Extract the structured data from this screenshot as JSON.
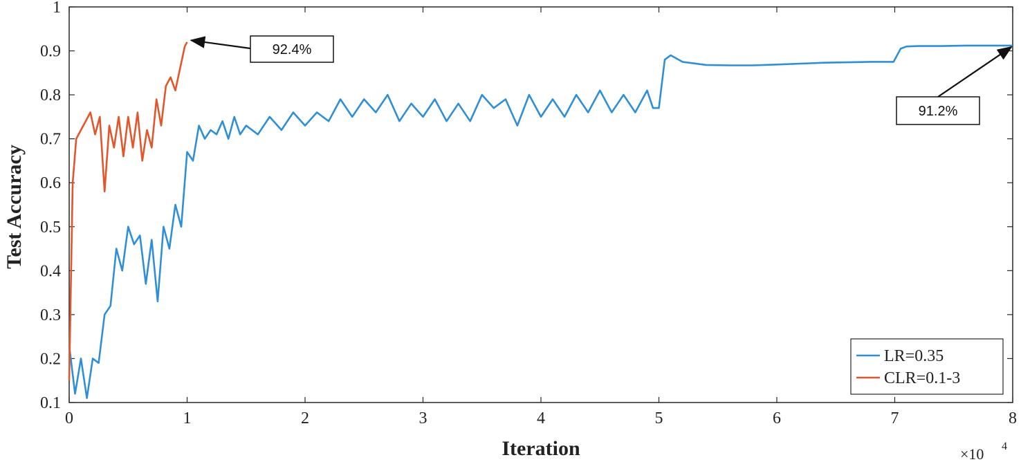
{
  "chart_data": {
    "type": "line",
    "title": "",
    "xlabel": "Iteration",
    "ylabel": "Test Accuracy",
    "x_multiplier": "×10",
    "x_multiplier_exp": "4",
    "xlim": [
      0,
      8
    ],
    "ylim": [
      0.1,
      1
    ],
    "xticks": [
      "0",
      "1",
      "2",
      "3",
      "4",
      "5",
      "6",
      "7",
      "8"
    ],
    "yticks": [
      "0.1",
      "0.2",
      "0.3",
      "0.4",
      "0.5",
      "0.6",
      "0.7",
      "0.8",
      "0.9",
      "1"
    ],
    "grid": false,
    "legend_position": "bottom-right",
    "series": [
      {
        "name": "LR=0.35",
        "color": "#2f8fd6",
        "x": [
          0.0,
          0.05,
          0.1,
          0.15,
          0.2,
          0.25,
          0.3,
          0.35,
          0.4,
          0.45,
          0.5,
          0.55,
          0.6,
          0.65,
          0.7,
          0.75,
          0.8,
          0.85,
          0.9,
          0.95,
          1.0,
          1.05,
          1.1,
          1.15,
          1.2,
          1.25,
          1.3,
          1.35,
          1.4,
          1.45,
          1.5,
          1.6,
          1.7,
          1.8,
          1.9,
          2.0,
          2.1,
          2.2,
          2.3,
          2.4,
          2.5,
          2.6,
          2.7,
          2.8,
          2.9,
          3.0,
          3.1,
          3.2,
          3.3,
          3.4,
          3.5,
          3.6,
          3.7,
          3.8,
          3.9,
          4.0,
          4.1,
          4.2,
          4.3,
          4.4,
          4.5,
          4.6,
          4.7,
          4.8,
          4.9,
          4.95,
          5.0,
          5.05,
          5.1,
          5.2,
          5.4,
          5.6,
          5.8,
          6.0,
          6.2,
          6.4,
          6.6,
          6.8,
          6.99,
          7.02,
          7.05,
          7.1,
          7.2,
          7.4,
          7.6,
          7.8,
          8.0
        ],
        "values": [
          0.23,
          0.12,
          0.2,
          0.11,
          0.2,
          0.19,
          0.3,
          0.32,
          0.45,
          0.4,
          0.5,
          0.46,
          0.48,
          0.37,
          0.47,
          0.33,
          0.5,
          0.45,
          0.55,
          0.5,
          0.67,
          0.65,
          0.73,
          0.7,
          0.72,
          0.71,
          0.74,
          0.7,
          0.75,
          0.71,
          0.73,
          0.71,
          0.75,
          0.72,
          0.76,
          0.73,
          0.76,
          0.74,
          0.79,
          0.75,
          0.79,
          0.76,
          0.8,
          0.74,
          0.78,
          0.75,
          0.79,
          0.74,
          0.78,
          0.74,
          0.8,
          0.77,
          0.79,
          0.73,
          0.8,
          0.75,
          0.79,
          0.75,
          0.8,
          0.76,
          0.81,
          0.76,
          0.8,
          0.76,
          0.81,
          0.77,
          0.77,
          0.88,
          0.89,
          0.875,
          0.868,
          0.867,
          0.867,
          0.869,
          0.871,
          0.873,
          0.874,
          0.875,
          0.875,
          0.89,
          0.905,
          0.91,
          0.911,
          0.911,
          0.912,
          0.912,
          0.912
        ]
      },
      {
        "name": "CLR=0.1-3",
        "color": "#e2562b",
        "x": [
          0.0,
          0.03,
          0.06,
          0.1,
          0.14,
          0.18,
          0.22,
          0.26,
          0.3,
          0.34,
          0.38,
          0.42,
          0.46,
          0.5,
          0.54,
          0.58,
          0.62,
          0.66,
          0.7,
          0.74,
          0.78,
          0.82,
          0.86,
          0.9,
          0.94,
          0.98,
          1.0
        ],
        "values": [
          0.15,
          0.6,
          0.7,
          0.72,
          0.74,
          0.76,
          0.71,
          0.75,
          0.58,
          0.73,
          0.68,
          0.75,
          0.66,
          0.75,
          0.68,
          0.76,
          0.65,
          0.72,
          0.68,
          0.79,
          0.73,
          0.82,
          0.84,
          0.81,
          0.86,
          0.91,
          0.92
        ]
      }
    ],
    "annotations": [
      {
        "text": "92.4%",
        "x": 1.0,
        "y": 0.924
      },
      {
        "text": "91.2%",
        "x": 8.0,
        "y": 0.912
      }
    ]
  }
}
